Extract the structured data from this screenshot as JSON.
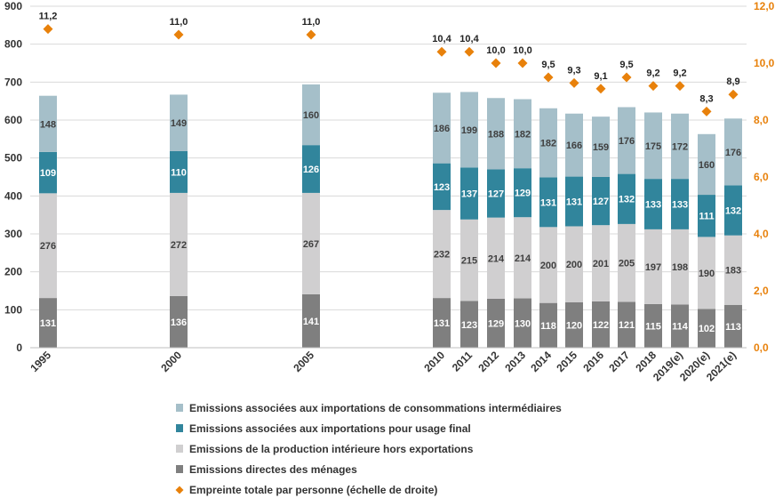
{
  "chart_data": {
    "type": "bar",
    "stacked": true,
    "categories": [
      "1995",
      "2000",
      "2005",
      "2010",
      "2011",
      "2012",
      "2013",
      "2014",
      "2015",
      "2016",
      "2017",
      "2018",
      "2019(e)",
      "2020(e)",
      "2021(e)"
    ],
    "series": [
      {
        "name": "Emissions directes des ménages",
        "color": "#7f7f7f",
        "label_color": "#ffffff",
        "values": [
          131,
          136,
          141,
          131,
          123,
          129,
          130,
          118,
          120,
          122,
          121,
          115,
          114,
          102,
          113
        ]
      },
      {
        "name": "Emissions de la production intérieure hors exportations",
        "color": "#d0cfd0",
        "label_color": "#404040",
        "values": [
          276,
          272,
          267,
          232,
          215,
          214,
          214,
          200,
          200,
          201,
          205,
          197,
          198,
          190,
          183
        ]
      },
      {
        "name": "Emissions associées aux importations pour usage final",
        "color": "#31859c",
        "label_color": "#ffffff",
        "values": [
          109,
          110,
          126,
          123,
          137,
          127,
          129,
          131,
          131,
          127,
          132,
          133,
          133,
          111,
          132
        ]
      },
      {
        "name": "Emissions associées aux importations de consommations intermédiaires",
        "color": "#a5bfc9",
        "label_color": "#404040",
        "values": [
          148,
          149,
          160,
          186,
          199,
          188,
          182,
          182,
          166,
          159,
          176,
          175,
          172,
          160,
          176
        ]
      }
    ],
    "line_series": {
      "name": "Empreinte totale par personne (échelle de droite)",
      "color": "#e8810b",
      "marker": "diamond",
      "values": [
        11.2,
        11.0,
        11.0,
        10.4,
        10.4,
        10.0,
        10.0,
        9.5,
        9.3,
        9.1,
        9.5,
        9.2,
        9.2,
        8.3,
        8.9
      ],
      "labels": [
        "11,2",
        "11,0",
        "11,0",
        "10,4",
        "10,4",
        "10,0",
        "10,0",
        "9,5",
        "9,3",
        "9,1",
        "9,5",
        "9,2",
        "9,2",
        "8,3",
        "8,9"
      ]
    },
    "y_left": {
      "ylim": [
        0,
        900
      ],
      "ticks": [
        "0",
        "100",
        "200",
        "300",
        "400",
        "500",
        "600",
        "700",
        "800",
        "900"
      ]
    },
    "y_right": {
      "ylim": [
        0,
        12
      ],
      "ticks": [
        "0,0",
        "2,0",
        "4,0",
        "6,0",
        "8,0",
        "10,0",
        "12,0"
      ],
      "color": "#e8810b"
    },
    "grid": true,
    "legend_position": "bottom"
  }
}
